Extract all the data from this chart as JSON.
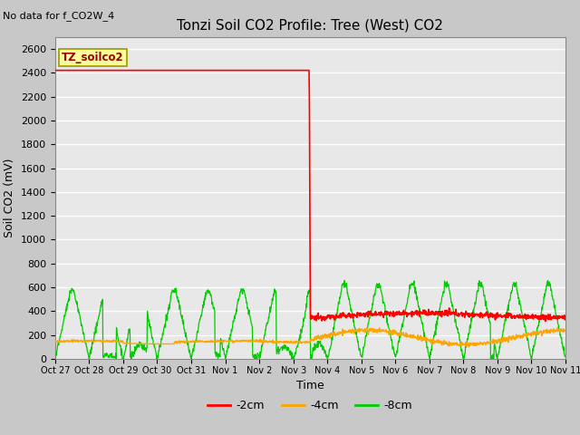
{
  "title": "Tonzi Soil CO2 Profile: Tree (West) CO2",
  "no_data_text": "No data for f_CO2W_4",
  "ylabel": "Soil CO2 (mV)",
  "xlabel": "Time",
  "legend_label": "TZ_soilco2",
  "ylim": [
    0,
    2700
  ],
  "yticks": [
    0,
    200,
    400,
    600,
    800,
    1000,
    1200,
    1400,
    1600,
    1800,
    2000,
    2200,
    2400,
    2600
  ],
  "xtick_labels": [
    "Oct 27",
    "Oct 28",
    "Oct 29",
    "Oct 30",
    "Oct 31",
    "Nov 1",
    "Nov 2",
    "Nov 3",
    "Nov 4",
    "Nov 5",
    "Nov 6",
    "Nov 7",
    "Nov 8",
    "Nov 9",
    "Nov 10",
    "Nov 11"
  ],
  "series_labels": [
    "-2cm",
    "-4cm",
    "-8cm"
  ],
  "series_colors": [
    "#ff0000",
    "#ffa500",
    "#00cc00"
  ],
  "fig_bg_color": "#c8c8c8",
  "plot_bg_color": "#e8e8e8",
  "grid_color": "#ffffff",
  "legend_box_facecolor": "#ffff99",
  "legend_box_edgecolor": "#999900",
  "legend_text_color": "#990000",
  "title_fontsize": 11,
  "axis_label_fontsize": 9,
  "tick_fontsize": 8,
  "no_data_fontsize": 8
}
